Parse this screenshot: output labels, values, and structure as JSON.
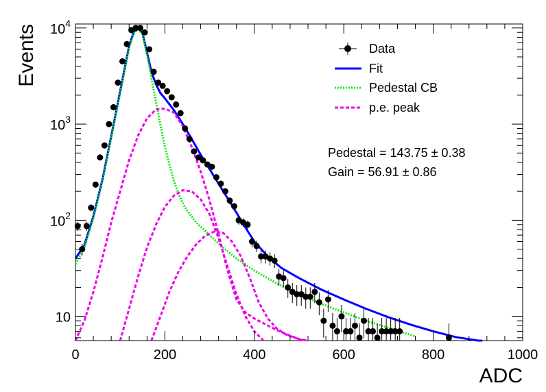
{
  "chart_data": {
    "type": "scatter",
    "xlabel": "ADC",
    "ylabel": "Events",
    "xlim": [
      0,
      1000
    ],
    "ylim": [
      5.6,
      11000
    ],
    "yscale": "log",
    "xticks": [
      0,
      200,
      400,
      600,
      800,
      1000
    ],
    "yticks": [
      {
        "base": "10",
        "exp": "4",
        "value": 10000
      },
      {
        "base": "10",
        "exp": "3",
        "value": 1000
      },
      {
        "base": "10",
        "exp": "2",
        "value": 100
      },
      {
        "base": "10",
        "exp": "",
        "value": 10
      }
    ],
    "legend_position": "top-right",
    "legend": [
      {
        "label": "Data",
        "kind": "marker",
        "color": "#000000"
      },
      {
        "label": "Fit",
        "kind": "solid",
        "color": "#0000ff"
      },
      {
        "label": "Pedestal CB",
        "kind": "dotted",
        "color": "#00ee00"
      },
      {
        "label": "p.e. peak",
        "kind": "dashed",
        "color": "#ee00ee"
      }
    ],
    "annotations": {
      "pedestal": "Pedestal = 143.75 ± 0.38",
      "gain": "Gain = 56.91 ± 0.86"
    },
    "series": [
      {
        "name": "Data",
        "style": "points",
        "color": "#000000",
        "x": [
          5,
          15,
          25,
          35,
          45,
          55,
          65,
          75,
          85,
          95,
          105,
          115,
          125,
          135,
          145,
          155,
          165,
          175,
          185,
          195,
          205,
          215,
          225,
          235,
          245,
          255,
          265,
          275,
          285,
          295,
          305,
          315,
          325,
          335,
          345,
          355,
          365,
          375,
          385,
          395,
          405,
          415,
          425,
          435,
          445,
          455,
          465,
          475,
          485,
          495,
          505,
          515,
          525,
          535,
          545,
          555,
          565,
          575,
          585,
          595,
          605,
          615,
          625,
          635,
          645,
          655,
          665,
          675,
          685,
          695,
          705,
          715,
          725,
          835
        ],
        "y": [
          87,
          50,
          87,
          135,
          235,
          450,
          600,
          1000,
          1500,
          2700,
          4500,
          6800,
          9500,
          10000,
          10000,
          9000,
          6000,
          3500,
          2700,
          2500,
          2200,
          1900,
          1600,
          1300,
          900,
          700,
          520,
          450,
          420,
          380,
          360,
          280,
          240,
          200,
          160,
          140,
          100,
          95,
          90,
          60,
          54,
          42,
          42,
          40,
          38,
          26,
          25,
          20,
          18,
          17,
          17,
          16,
          16,
          18,
          14,
          9,
          15,
          8,
          7,
          10,
          7,
          7,
          8,
          6,
          9,
          7,
          7,
          6,
          7,
          7,
          7,
          7,
          7,
          6
        ]
      },
      {
        "name": "Fit",
        "style": "solid",
        "color": "#0000ff",
        "x": [
          0,
          20,
          40,
          60,
          80,
          100,
          120,
          130,
          140,
          150,
          160,
          170,
          180,
          190,
          200,
          220,
          240,
          260,
          280,
          300,
          320,
          340,
          360,
          380,
          400,
          430,
          460,
          500,
          550,
          600,
          650,
          700,
          750,
          800,
          850,
          900,
          910
        ],
        "y": [
          40,
          55,
          110,
          260,
          750,
          2200,
          6500,
          9000,
          10000,
          8800,
          5600,
          3500,
          2600,
          2100,
          1850,
          1400,
          1000,
          700,
          480,
          340,
          240,
          170,
          120,
          84,
          60,
          42,
          32,
          25,
          19,
          15,
          12,
          9.8,
          8.2,
          7.0,
          6.1,
          5.5,
          5.4
        ]
      },
      {
        "name": "Pedestal CB",
        "style": "dotted",
        "color": "#00ee00",
        "x": [
          0,
          20,
          40,
          60,
          80,
          100,
          120,
          130,
          140,
          150,
          160,
          170,
          180,
          190,
          200,
          210,
          220,
          230,
          240,
          250,
          270,
          300,
          330,
          360,
          400,
          450,
          500,
          550,
          600,
          650,
          700,
          760
        ],
        "y": [
          35,
          52,
          105,
          250,
          720,
          2100,
          6200,
          8700,
          9700,
          8500,
          5300,
          3000,
          1700,
          980,
          580,
          380,
          260,
          190,
          150,
          125,
          95,
          70,
          52,
          40,
          30,
          22,
          17,
          13.5,
          11,
          9,
          7.6,
          6.2
        ]
      },
      {
        "name": "p.e. peak",
        "style": "dashed",
        "color": "#ee00ee",
        "x": [
          0,
          20,
          40,
          60,
          80,
          100,
          120,
          140,
          160,
          180,
          200,
          220,
          240,
          260,
          280,
          300,
          320,
          340,
          360,
          380,
          400,
          420,
          440,
          460,
          480,
          500,
          520
        ],
        "y": [
          5.6,
          9,
          18,
          40,
          95,
          200,
          420,
          760,
          1150,
          1420,
          1450,
          1320,
          950,
          580,
          320,
          160,
          72,
          30,
          15,
          11,
          9.5,
          8.5,
          7.6,
          6.9,
          6.3,
          5.8,
          5.6
        ]
      },
      {
        "name": "p.e. peak",
        "style": "dashed",
        "color": "#ee00ee",
        "x": [
          100,
          120,
          140,
          160,
          180,
          200,
          220,
          240,
          260,
          280,
          300,
          320,
          340,
          360,
          380,
          400,
          420
        ],
        "y": [
          5.6,
          12,
          26,
          52,
          90,
          138,
          180,
          205,
          200,
          165,
          115,
          65,
          33,
          17,
          10,
          7,
          5.6
        ]
      },
      {
        "name": "p.e. peak",
        "style": "dashed",
        "color": "#ee00ee",
        "x": [
          170,
          190,
          210,
          230,
          250,
          270,
          290,
          310,
          330,
          350,
          370,
          390,
          410,
          430,
          450,
          470,
          490,
          510
        ],
        "y": [
          5.6,
          10,
          18,
          29,
          42,
          56,
          69,
          76,
          74,
          60,
          42,
          25,
          14,
          9.5,
          7.5,
          6.5,
          6,
          5.6
        ]
      }
    ]
  }
}
